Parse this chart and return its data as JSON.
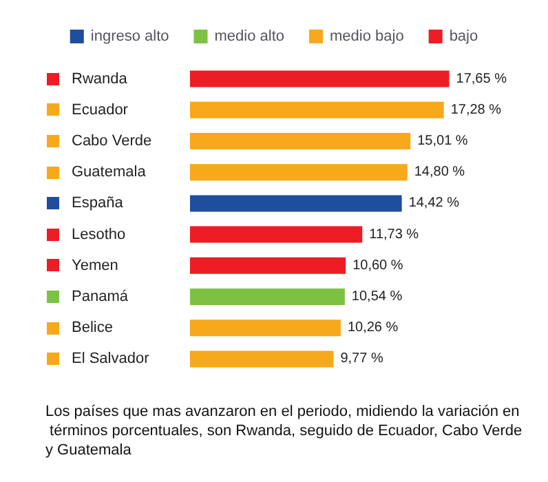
{
  "chart_data": {
    "type": "bar",
    "orientation": "horizontal",
    "stacked": true,
    "legend": "top",
    "categories": [
      "Rwanda",
      "Ecuador",
      "Cabo Verde",
      "Guatemala",
      "España",
      "Lesotho",
      "Yemen",
      "Panamá",
      "Belice",
      "El Salvador"
    ],
    "series": [
      {
        "name": "ingreso alto",
        "color": "#1f4e9c",
        "values": [
          null,
          null,
          null,
          null,
          14.42,
          null,
          null,
          null,
          null,
          null
        ],
        "value_labels": [
          null,
          null,
          null,
          null,
          "14,42 %",
          null,
          null,
          null,
          null,
          null
        ]
      },
      {
        "name": "medio alto",
        "color": "#7dc242",
        "values": [
          null,
          null,
          null,
          null,
          null,
          null,
          null,
          10.54,
          null,
          null
        ],
        "value_labels": [
          null,
          null,
          null,
          null,
          null,
          null,
          null,
          "10,54 %",
          null,
          null
        ]
      },
      {
        "name": "medio bajo",
        "color": "#f7a81b",
        "values": [
          null,
          17.28,
          15.01,
          14.8,
          null,
          null,
          null,
          null,
          10.26,
          9.77
        ],
        "value_labels": [
          null,
          "17,28 %",
          "15,01 %",
          "14,80 %",
          null,
          null,
          null,
          null,
          "10,26 %",
          "9,77 %"
        ]
      },
      {
        "name": "bajo",
        "color": "#ee1c25",
        "values": [
          17.65,
          null,
          null,
          null,
          null,
          11.73,
          10.6,
          null,
          null,
          null
        ],
        "value_labels": [
          "17,65 %",
          null,
          null,
          null,
          null,
          "11,73 %",
          "10,60 %",
          null,
          null,
          null
        ]
      }
    ],
    "annotations": [
      "Los países que mas avanzaron en el periodo, midiendo la variación en términos porcentuales, son Rwanda, seguido de Ecuador, Cabo Verde y Guatemala"
    ]
  }
}
